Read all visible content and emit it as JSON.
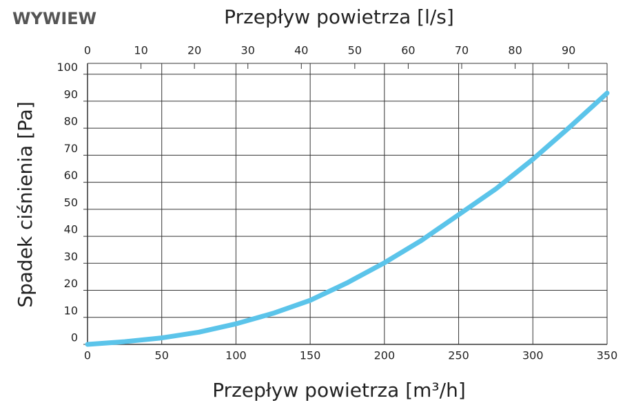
{
  "chart_data": {
    "type": "line",
    "title": "WYWIEW",
    "xlabel": "Przepływ powietrza [m³/h]",
    "x2label": "Przepływ powietrza [l/s]",
    "ylabel": "Spadek ciśnienia [Pa]",
    "x": [
      0,
      25,
      50,
      75,
      100,
      125,
      150,
      175,
      200,
      225,
      250,
      275,
      300,
      325,
      350
    ],
    "series": [
      {
        "name": "Wywiew",
        "color": "#5bc4ea",
        "values": [
          0,
          1,
          2.4,
          4.5,
          7.6,
          11.5,
          16.3,
          22.8,
          30.2,
          38.5,
          48,
          57.5,
          68.5,
          80.5,
          93
        ]
      }
    ],
    "xlim": [
      0,
      350
    ],
    "xticks": [
      0,
      50,
      100,
      150,
      200,
      250,
      300,
      350
    ],
    "x2lim": [
      0,
      97.2
    ],
    "x2ticks": [
      0,
      10,
      20,
      30,
      40,
      50,
      60,
      70,
      80,
      90
    ],
    "ylim": [
      0,
      104
    ],
    "yticks": [
      0,
      10,
      20,
      30,
      40,
      50,
      60,
      70,
      80,
      90,
      100
    ],
    "grid": true
  }
}
